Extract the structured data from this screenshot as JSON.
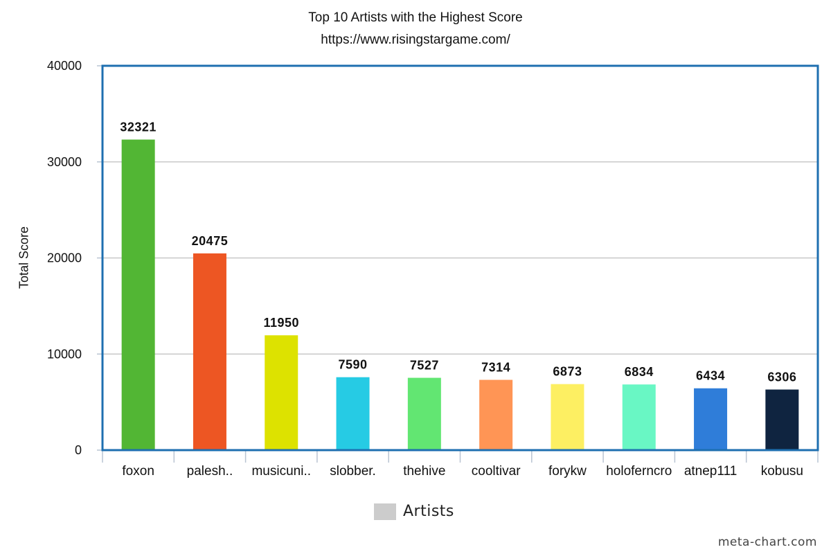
{
  "chart_data": {
    "type": "bar",
    "title": "Top 10 Artists with the Highest Score",
    "subtitle": "https://www.risingstargame.com/",
    "xlabel": "",
    "ylabel": "Total Score",
    "ylim": [
      0,
      40000
    ],
    "yticks": [
      "0",
      "10000",
      "20000",
      "30000",
      "40000"
    ],
    "grid": true,
    "categories": [
      "foxon",
      "palesh..",
      "musicuni..",
      "slobber.",
      "thehive",
      "cooltivar",
      "forykw",
      "holoferncro",
      "atnep111",
      "kobusu"
    ],
    "series": [
      {
        "name": "Artists",
        "values": [
          32321,
          20475,
          11950,
          7590,
          7527,
          7314,
          6873,
          6834,
          6434,
          6306
        ],
        "labels": [
          "32321",
          "20475",
          "11950",
          "7590",
          "7527",
          "7314",
          "6873",
          "6834",
          "6434",
          "6306"
        ]
      }
    ],
    "colors": [
      "#52b634",
      "#ed5623",
      "#dde200",
      "#26cbe4",
      "#62e672",
      "#ff9555",
      "#fdef62",
      "#69f7c4",
      "#2f7dd9",
      "#0f2440"
    ],
    "legend_color": "#cccccc",
    "legend_position": "bottom-center",
    "frame_color": "#1e6fb0"
  },
  "footer": {
    "credit": "meta-chart.com"
  }
}
